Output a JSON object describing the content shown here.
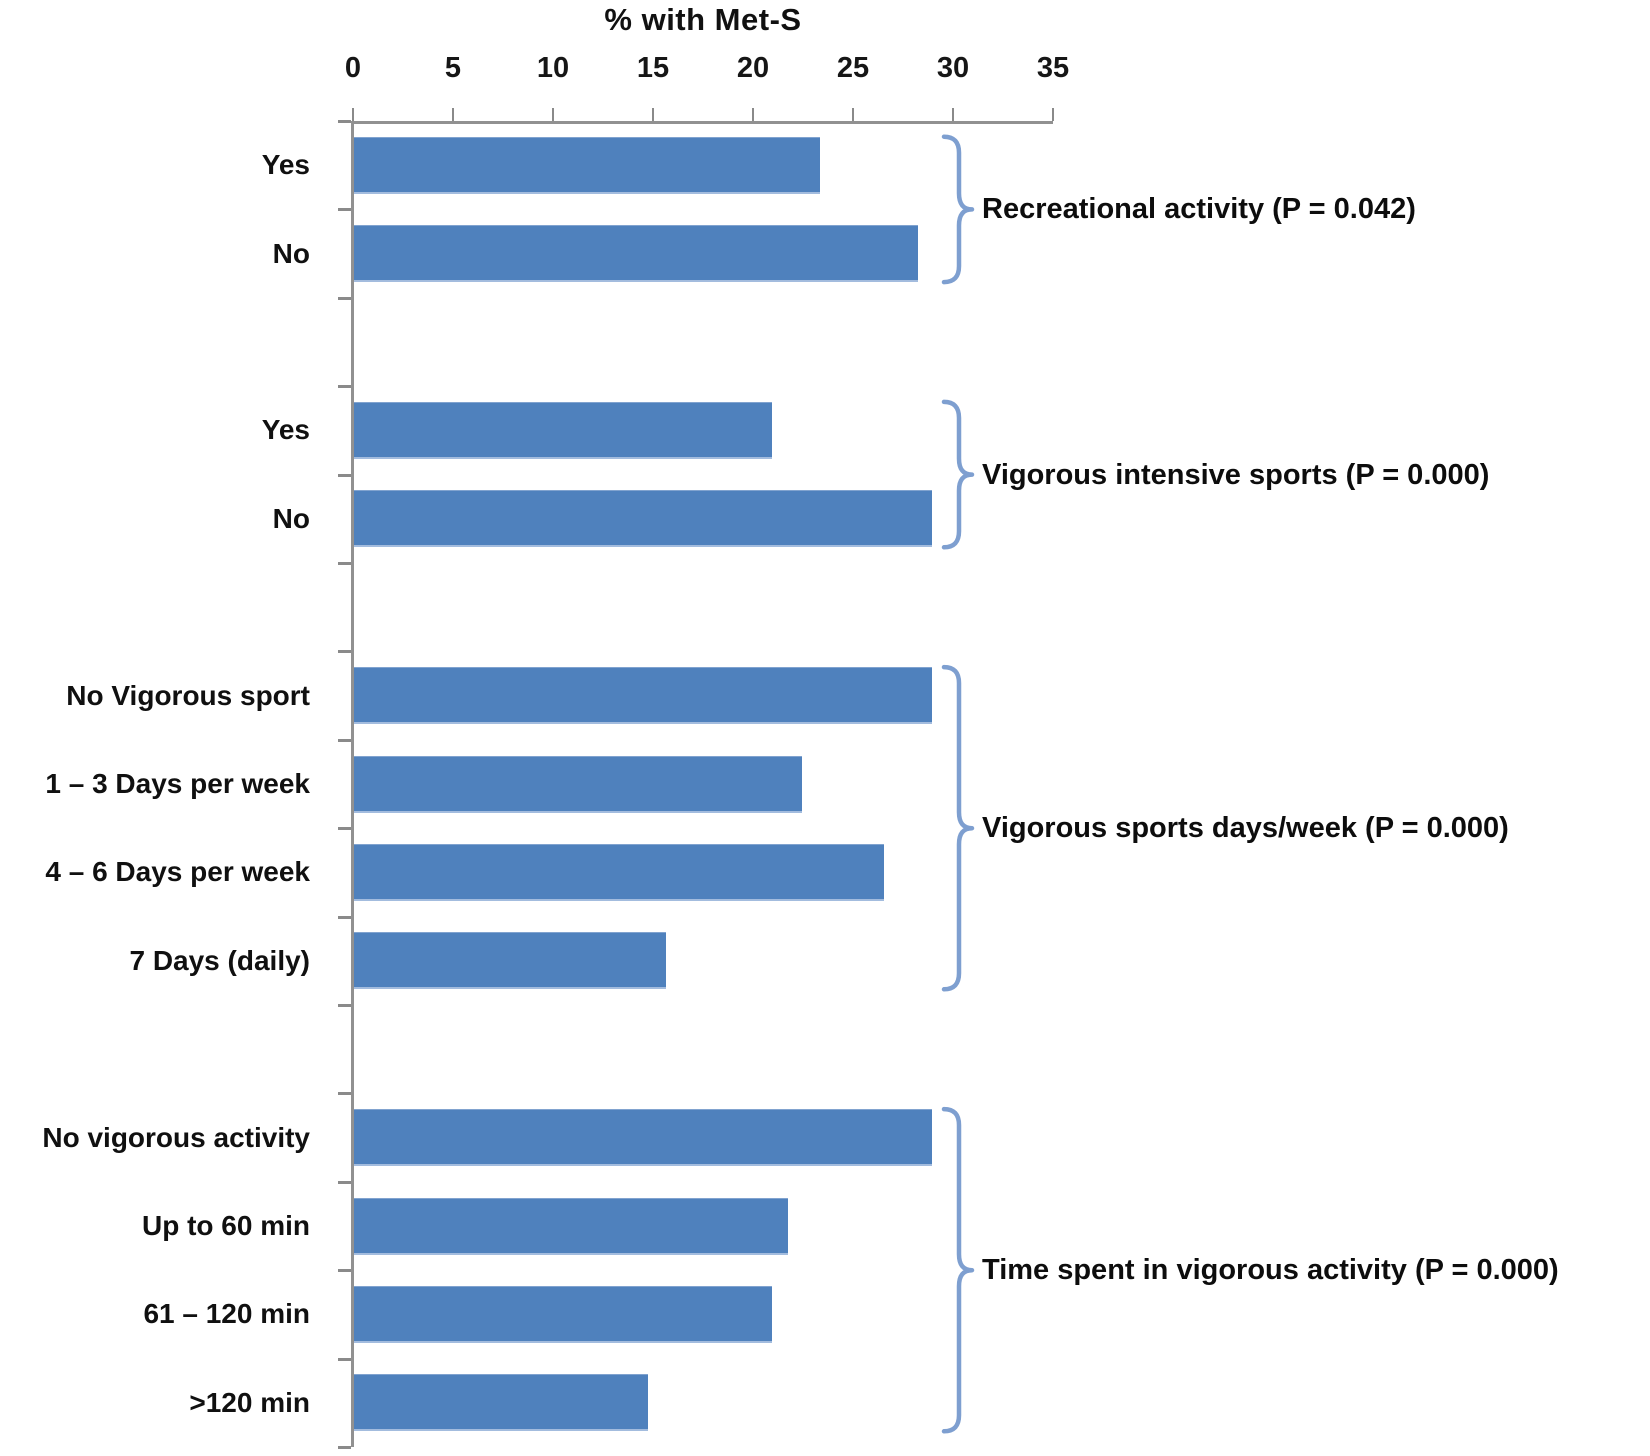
{
  "chart_data": {
    "type": "bar",
    "orientation": "horizontal",
    "title": "% with Met-S",
    "xlabel": "% with Met-S",
    "ylabel": "",
    "xlim": [
      0,
      35
    ],
    "x_ticks": [
      0,
      5,
      10,
      15,
      20,
      25,
      30,
      35
    ],
    "grid": false,
    "legend": "none",
    "bar_color": "#4f81bd",
    "brace_color": "#7e9fd0",
    "axis_color": "#919191",
    "groups": [
      {
        "label": "Recreational activity (P = 0.042)",
        "categories": [
          "Yes",
          "No"
        ],
        "values": [
          23.3,
          28.2
        ]
      },
      {
        "label": "Vigorous intensive sports (P = 0.000)",
        "categories": [
          "Yes",
          "No"
        ],
        "values": [
          20.9,
          28.9
        ]
      },
      {
        "label": "Vigorous sports days/week (P = 0.000)",
        "categories": [
          "No Vigorous sport",
          "1 – 3 Days per week",
          "4 – 6 Days per week",
          "7 Days (daily)"
        ],
        "values": [
          28.9,
          22.4,
          26.5,
          15.6
        ]
      },
      {
        "label": "Time spent in vigorous activity (P = 0.000)",
        "categories": [
          "No vigorous activity",
          "Up to 60 min",
          "61 – 120 min",
          ">120 min"
        ],
        "values": [
          28.9,
          21.7,
          20.9,
          14.7
        ]
      }
    ]
  }
}
